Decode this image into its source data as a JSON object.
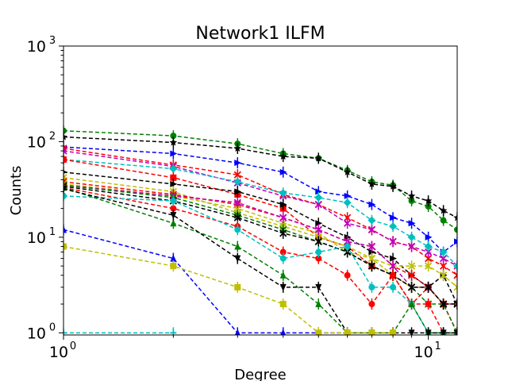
{
  "chart_data": {
    "type": "line",
    "title": "Network1 ILFM",
    "xlabel": "Degree",
    "ylabel": "Counts",
    "xscale": "log",
    "yscale": "log",
    "xlim": [
      1,
      12
    ],
    "ylim": [
      0.95,
      1000
    ],
    "x_ticks": [
      {
        "value": 1,
        "base": "10",
        "exp": "0"
      },
      {
        "value": 10,
        "base": "10",
        "exp": "1"
      }
    ],
    "y_ticks": [
      {
        "value": 1,
        "base": "10",
        "exp": "0"
      },
      {
        "value": 10,
        "base": "10",
        "exp": "1"
      },
      {
        "value": 100,
        "base": "10",
        "exp": "2"
      },
      {
        "value": 1000,
        "base": "10",
        "exp": "3"
      }
    ],
    "grid": false,
    "line_style": "dashed",
    "series": [
      {
        "color": "#008000",
        "marker": "o",
        "x": [
          1,
          2,
          3,
          4,
          5,
          6,
          7,
          8,
          9,
          10,
          11,
          12
        ],
        "y": [
          130,
          115,
          95,
          75,
          67,
          50,
          38,
          35,
          24,
          21,
          15,
          12
        ]
      },
      {
        "color": "#000000",
        "marker": "star",
        "x": [
          1,
          2,
          3,
          4,
          5,
          6,
          7,
          8,
          9,
          10,
          11,
          12
        ],
        "y": [
          112,
          98,
          85,
          70,
          67,
          48,
          36,
          34,
          27,
          24,
          19,
          16
        ]
      },
      {
        "color": "#0000ff",
        "marker": "tri_right",
        "x": [
          1,
          2,
          3,
          4,
          5,
          6,
          7,
          8,
          9,
          10,
          11,
          12
        ],
        "y": [
          88,
          75,
          60,
          48,
          30,
          27,
          22,
          16,
          14,
          10,
          7,
          9
        ]
      },
      {
        "color": "#ff0000",
        "marker": "x",
        "x": [
          1,
          2,
          3,
          4,
          5,
          6,
          7,
          8,
          9,
          10,
          11,
          12
        ],
        "y": [
          85,
          57,
          45,
          28,
          22,
          16,
          12,
          9,
          8,
          6,
          5,
          4
        ]
      },
      {
        "color": "#bf00bf",
        "marker": "x",
        "x": [
          1,
          2,
          3,
          4,
          5,
          6,
          7,
          8,
          9,
          10,
          11,
          12
        ],
        "y": [
          80,
          55,
          37,
          27,
          22,
          14,
          12,
          9,
          8,
          7,
          6,
          5
        ]
      },
      {
        "color": "#00bfbf",
        "marker": "D",
        "x": [
          1,
          2,
          3,
          4,
          5,
          6,
          7,
          8,
          9,
          10,
          11,
          12
        ],
        "y": [
          65,
          52,
          38,
          29,
          26,
          23,
          15,
          13,
          10,
          8,
          7,
          5
        ]
      },
      {
        "color": "#ff0000",
        "marker": "s",
        "x": [
          1,
          2,
          3,
          4,
          5,
          6,
          7,
          8,
          9,
          10,
          11,
          12
        ],
        "y": [
          65,
          42,
          28,
          20,
          10,
          8,
          5,
          4,
          2,
          3,
          2,
          1
        ]
      },
      {
        "color": "#000000",
        "marker": "tri_right",
        "x": [
          1,
          2,
          3,
          4,
          5,
          6,
          7,
          8,
          9,
          10,
          11,
          12
        ],
        "y": [
          48,
          36,
          30,
          22,
          14,
          10,
          7,
          6,
          4,
          3,
          4,
          2
        ]
      },
      {
        "color": "#bfbf00",
        "marker": "x",
        "x": [
          1,
          2,
          3,
          4,
          5,
          6,
          7,
          8,
          9,
          10,
          11,
          12
        ],
        "y": [
          42,
          30,
          18,
          13,
          10,
          8,
          6,
          5,
          5,
          5,
          4,
          3
        ]
      },
      {
        "color": "#ff0000",
        "marker": "x",
        "x": [
          1,
          2,
          3,
          4,
          5,
          6,
          7,
          8,
          9,
          10,
          11,
          12
        ],
        "y": [
          38,
          28,
          22,
          16,
          12,
          9,
          8,
          5,
          4,
          3,
          2,
          2
        ]
      },
      {
        "color": "#bfbf00",
        "marker": "x",
        "x": [
          1,
          2,
          3,
          4,
          5,
          6,
          7,
          8,
          9,
          10,
          11,
          12
        ],
        "y": [
          36,
          27,
          20,
          14,
          11,
          7,
          6,
          4,
          3,
          3,
          2,
          2
        ]
      },
      {
        "color": "#bf00bf",
        "marker": "x",
        "x": [
          1,
          2,
          3,
          4,
          5,
          6,
          7,
          8,
          9,
          10,
          11,
          12
        ],
        "y": [
          35,
          27,
          23,
          16,
          12,
          9,
          8,
          5,
          3,
          3,
          2,
          2
        ]
      },
      {
        "color": "#008000",
        "marker": "x",
        "x": [
          1,
          2,
          3,
          4,
          5,
          6,
          7,
          8,
          9,
          10,
          11,
          12
        ],
        "y": [
          35,
          26,
          17,
          12,
          9,
          7,
          5,
          4,
          3,
          2,
          2,
          1
        ]
      },
      {
        "color": "#000000",
        "marker": "x",
        "x": [
          1,
          2,
          3,
          4,
          5,
          6,
          7,
          8,
          9,
          10,
          11,
          12
        ],
        "y": [
          34,
          24,
          16,
          11,
          9,
          7,
          5,
          4,
          3,
          3,
          2,
          2
        ]
      },
      {
        "color": "#ff0000",
        "marker": "o",
        "x": [
          1,
          2,
          3,
          4,
          5,
          6,
          7,
          8,
          9,
          10,
          11,
          12
        ],
        "y": [
          33,
          20,
          13,
          7,
          6,
          4,
          2,
          4,
          2,
          2,
          1,
          1
        ]
      },
      {
        "color": "#00bfbf",
        "marker": "o",
        "x": [
          1,
          2,
          3,
          4,
          5,
          6,
          7,
          8,
          9,
          10,
          11,
          12
        ],
        "y": [
          27,
          24,
          12,
          6,
          7,
          8,
          3,
          3,
          2,
          1,
          1,
          1
        ]
      },
      {
        "color": "#008000",
        "marker": "tri_up",
        "x": [
          1,
          2,
          3,
          4,
          5,
          6,
          7,
          8,
          9,
          10,
          11,
          12
        ],
        "y": [
          33,
          14,
          8,
          4,
          2,
          1,
          1,
          1,
          2,
          1,
          1,
          1
        ]
      },
      {
        "color": "#000000",
        "marker": "tri_down",
        "x": [
          1,
          2,
          3,
          4,
          5,
          6,
          7,
          8,
          9,
          10,
          11,
          12
        ],
        "y": [
          32,
          17,
          6,
          3,
          3,
          1,
          1,
          1,
          1,
          1,
          1,
          1
        ]
      },
      {
        "color": "#0000ff",
        "marker": "tri_up",
        "x": [
          1,
          2,
          3,
          4,
          5,
          6
        ],
        "y": [
          12,
          6,
          1,
          1,
          1,
          1
        ]
      },
      {
        "color": "#bfbf00",
        "marker": "s",
        "x": [
          1,
          2,
          3,
          4,
          5,
          6,
          7,
          8
        ],
        "y": [
          8,
          5,
          3,
          2,
          1,
          1,
          1,
          1
        ]
      },
      {
        "color": "#00bfbf",
        "marker": "plus",
        "x": [
          1,
          2
        ],
        "y": [
          1,
          1
        ]
      }
    ]
  }
}
